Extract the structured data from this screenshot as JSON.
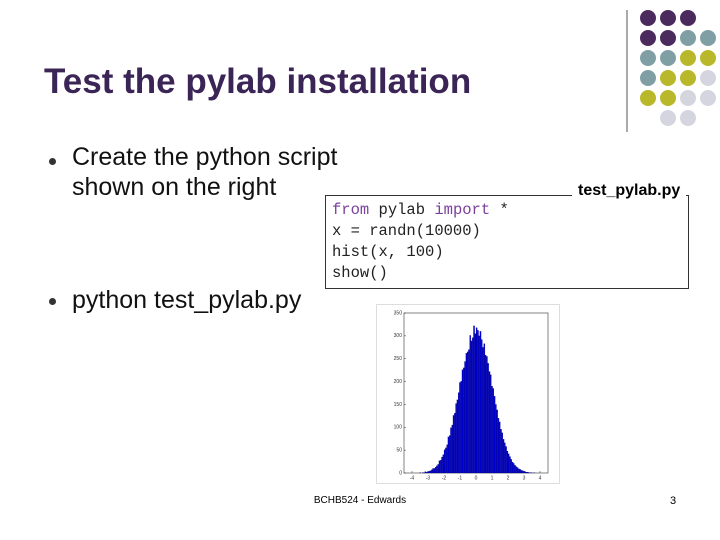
{
  "slide": {
    "title": "Test the pylab installation",
    "bullets": [
      "Create the python script shown on the right",
      "python test_pylab.py"
    ],
    "code_filename": "test_pylab.py",
    "code_lines": [
      [
        {
          "text": "from",
          "color": "#7b3f9e"
        },
        {
          "text": " pylab ",
          "color": "#222222"
        },
        {
          "text": "import",
          "color": "#7b3f9e"
        },
        {
          "text": " *",
          "color": "#222222"
        }
      ],
      [
        {
          "text": "x = randn(10000)",
          "color": "#222222"
        }
      ],
      [
        {
          "text": "hist(x, 100)",
          "color": "#222222"
        }
      ],
      [
        {
          "text": "show()",
          "color": "#222222"
        }
      ]
    ],
    "footer": "BCHB524 - Edwards",
    "page_number": "3"
  },
  "chart_data": {
    "type": "histogram",
    "color": "#0000cc",
    "bins": [
      -4,
      -3.92,
      -3.84,
      -3.76,
      -3.68,
      -3.6,
      -3.52,
      -3.44,
      -3.36,
      -3.28,
      -3.2,
      -3.12,
      -3.04,
      -2.96,
      -2.88,
      -2.8,
      -2.72,
      -2.64,
      -2.56,
      -2.48,
      -2.4,
      -2.32,
      -2.24,
      -2.16,
      -2.08,
      -2,
      -1.92,
      -1.84,
      -1.76,
      -1.68,
      -1.6,
      -1.52,
      -1.44,
      -1.36,
      -1.28,
      -1.2,
      -1.12,
      -1.04,
      -0.96,
      -0.88,
      -0.8,
      -0.72,
      -0.64,
      -0.56,
      -0.48,
      -0.4,
      -0.32,
      -0.24,
      -0.16,
      -0.08,
      0,
      0.08,
      0.16,
      0.24,
      0.32,
      0.4,
      0.48,
      0.56,
      0.64,
      0.72,
      0.8,
      0.88,
      0.96,
      1.04,
      1.12,
      1.2,
      1.28,
      1.36,
      1.44,
      1.52,
      1.6,
      1.68,
      1.76,
      1.84,
      1.92,
      2,
      2.08,
      2.16,
      2.24,
      2.32,
      2.4,
      2.48,
      2.56,
      2.64,
      2.72,
      2.8,
      2.88,
      2.96,
      3.04,
      3.12,
      3.2,
      3.28,
      3.36,
      3.44,
      3.52,
      3.6,
      3.68,
      3.76,
      3.84,
      3.92,
      4
    ],
    "values": [
      0,
      0,
      0,
      0,
      0,
      0,
      1,
      0,
      1,
      1,
      3,
      2,
      3,
      4,
      5,
      7,
      10,
      10,
      13,
      16,
      19,
      27,
      28,
      35,
      40,
      51,
      55,
      62,
      79,
      82,
      99,
      105,
      126,
      131,
      152,
      160,
      176,
      198,
      201,
      226,
      230,
      244,
      262,
      265,
      270,
      301,
      289,
      296,
      322,
      305,
      318,
      312,
      300,
      310,
      292,
      275,
      283,
      258,
      255,
      240,
      222,
      215,
      190,
      185,
      168,
      150,
      138,
      120,
      112,
      96,
      88,
      74,
      66,
      58,
      48,
      42,
      36,
      30,
      24,
      21,
      17,
      14,
      12,
      9,
      8,
      6,
      5,
      4,
      3,
      2,
      2,
      1,
      1,
      1,
      0,
      1,
      0,
      0,
      0,
      0
    ],
    "xlim": [
      -4.5,
      4.5
    ],
    "xticks": [
      -4,
      -3,
      -2,
      -1,
      0,
      1,
      2,
      3,
      4
    ],
    "ylim": [
      0,
      350
    ],
    "yticks": [
      0,
      50,
      100,
      150,
      200,
      250,
      300,
      350
    ]
  }
}
